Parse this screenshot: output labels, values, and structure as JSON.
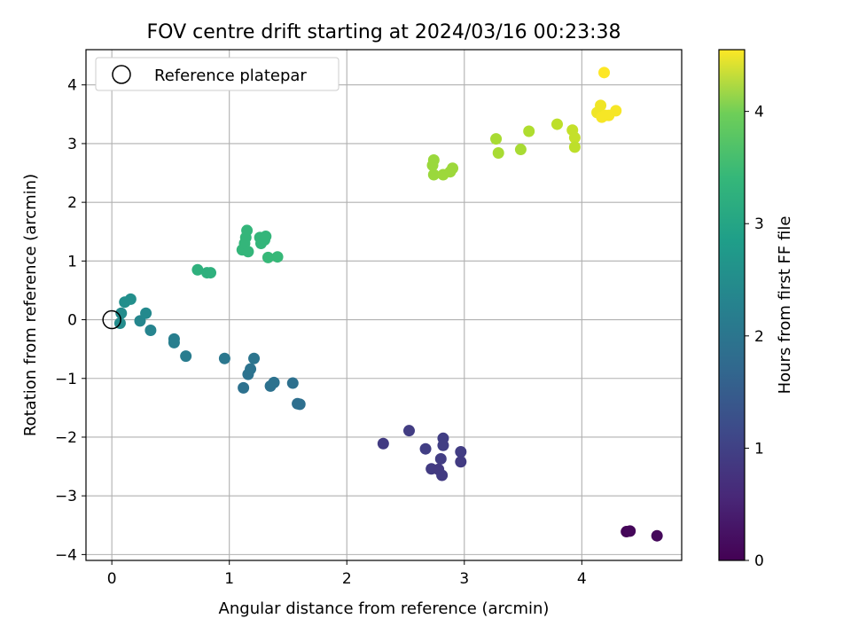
{
  "chart_data": {
    "type": "scatter",
    "title": "FOV centre drift starting at 2024/03/16 00:23:38",
    "xlabel": "Angular distance from reference (arcmin)",
    "ylabel": "Rotation from reference (arcmin)",
    "xlim": [
      -0.22,
      4.85
    ],
    "ylim": [
      -4.1,
      4.6
    ],
    "xticks": [
      0,
      1,
      2,
      3,
      4
    ],
    "yticks": [
      -4,
      -3,
      -2,
      -1,
      0,
      1,
      2,
      3,
      4
    ],
    "grid": true,
    "legend": {
      "placement": "top-left",
      "entries": [
        "Reference platepar"
      ]
    },
    "reference_point": {
      "x": 0,
      "y": 0
    },
    "colorbar": {
      "label": "Hours from first FF file",
      "colormap": "viridis",
      "range": [
        0,
        4.55
      ],
      "ticks": [
        0,
        1,
        2,
        3,
        4
      ]
    },
    "points": [
      {
        "x": 4.38,
        "y": -3.61,
        "c": 0.05
      },
      {
        "x": 4.41,
        "y": -3.6,
        "c": 0.08
      },
      {
        "x": 4.64,
        "y": -3.68,
        "c": 0.1
      },
      {
        "x": 2.31,
        "y": -2.11,
        "c": 0.8
      },
      {
        "x": 2.53,
        "y": -1.89,
        "c": 0.82
      },
      {
        "x": 2.67,
        "y": -2.2,
        "c": 0.85
      },
      {
        "x": 2.72,
        "y": -2.54,
        "c": 0.8
      },
      {
        "x": 2.78,
        "y": -2.55,
        "c": 0.78
      },
      {
        "x": 2.8,
        "y": -2.37,
        "c": 0.83
      },
      {
        "x": 2.81,
        "y": -2.65,
        "c": 0.8
      },
      {
        "x": 2.82,
        "y": -2.02,
        "c": 0.85
      },
      {
        "x": 2.82,
        "y": -2.14,
        "c": 0.85
      },
      {
        "x": 2.97,
        "y": -2.25,
        "c": 0.82
      },
      {
        "x": 2.97,
        "y": -2.42,
        "c": 0.8
      },
      {
        "x": 1.12,
        "y": -1.16,
        "c": 1.7
      },
      {
        "x": 1.16,
        "y": -0.93,
        "c": 1.72
      },
      {
        "x": 1.18,
        "y": -0.84,
        "c": 1.74
      },
      {
        "x": 1.21,
        "y": -0.66,
        "c": 1.76
      },
      {
        "x": 1.35,
        "y": -1.13,
        "c": 1.7
      },
      {
        "x": 1.38,
        "y": -1.07,
        "c": 1.72
      },
      {
        "x": 1.54,
        "y": -1.08,
        "c": 1.68
      },
      {
        "x": 1.58,
        "y": -1.43,
        "c": 1.66
      },
      {
        "x": 1.6,
        "y": -1.44,
        "c": 1.66
      },
      {
        "x": 0.96,
        "y": -0.66,
        "c": 1.8
      },
      {
        "x": 0.63,
        "y": -0.62,
        "c": 1.9
      },
      {
        "x": 0.53,
        "y": -0.33,
        "c": 1.95
      },
      {
        "x": 0.53,
        "y": -0.39,
        "c": 1.95
      },
      {
        "x": 0.33,
        "y": -0.18,
        "c": 2.05
      },
      {
        "x": 0.24,
        "y": -0.02,
        "c": 2.1
      },
      {
        "x": 0.29,
        "y": 0.11,
        "c": 2.15
      },
      {
        "x": 0.08,
        "y": 0.11,
        "c": 2.2
      },
      {
        "x": 0.07,
        "y": -0.06,
        "c": 2.2
      },
      {
        "x": 0.11,
        "y": 0.3,
        "c": 2.25
      },
      {
        "x": 0.16,
        "y": 0.35,
        "c": 2.25
      },
      {
        "x": 0.73,
        "y": 0.85,
        "c": 2.9
      },
      {
        "x": 0.81,
        "y": 0.8,
        "c": 2.9
      },
      {
        "x": 0.84,
        "y": 0.8,
        "c": 2.9
      },
      {
        "x": 1.11,
        "y": 1.19,
        "c": 3.0
      },
      {
        "x": 1.13,
        "y": 1.3,
        "c": 3.0
      },
      {
        "x": 1.14,
        "y": 1.4,
        "c": 3.0
      },
      {
        "x": 1.15,
        "y": 1.52,
        "c": 3.0
      },
      {
        "x": 1.16,
        "y": 1.16,
        "c": 3.0
      },
      {
        "x": 1.26,
        "y": 1.4,
        "c": 3.0
      },
      {
        "x": 1.27,
        "y": 1.3,
        "c": 3.0
      },
      {
        "x": 1.3,
        "y": 1.36,
        "c": 3.0
      },
      {
        "x": 1.31,
        "y": 1.42,
        "c": 3.0
      },
      {
        "x": 1.33,
        "y": 1.06,
        "c": 3.05
      },
      {
        "x": 1.41,
        "y": 1.07,
        "c": 3.05
      },
      {
        "x": 2.73,
        "y": 2.63,
        "c": 3.85
      },
      {
        "x": 2.74,
        "y": 2.72,
        "c": 3.85
      },
      {
        "x": 2.74,
        "y": 2.47,
        "c": 3.85
      },
      {
        "x": 2.82,
        "y": 2.47,
        "c": 3.87
      },
      {
        "x": 2.88,
        "y": 2.52,
        "c": 3.87
      },
      {
        "x": 2.9,
        "y": 2.58,
        "c": 3.87
      },
      {
        "x": 3.27,
        "y": 3.08,
        "c": 3.95
      },
      {
        "x": 3.29,
        "y": 2.84,
        "c": 3.95
      },
      {
        "x": 3.48,
        "y": 2.9,
        "c": 3.95
      },
      {
        "x": 3.55,
        "y": 3.21,
        "c": 4.0
      },
      {
        "x": 3.79,
        "y": 3.33,
        "c": 4.1
      },
      {
        "x": 3.92,
        "y": 3.23,
        "c": 4.15
      },
      {
        "x": 3.94,
        "y": 3.1,
        "c": 4.15
      },
      {
        "x": 3.94,
        "y": 2.94,
        "c": 4.1
      },
      {
        "x": 4.13,
        "y": 3.53,
        "c": 4.45
      },
      {
        "x": 4.16,
        "y": 3.65,
        "c": 4.45
      },
      {
        "x": 4.17,
        "y": 3.45,
        "c": 4.5
      },
      {
        "x": 4.2,
        "y": 3.48,
        "c": 4.5
      },
      {
        "x": 4.23,
        "y": 3.48,
        "c": 4.5
      },
      {
        "x": 4.29,
        "y": 3.56,
        "c": 4.5
      },
      {
        "x": 4.19,
        "y": 4.21,
        "c": 4.55
      }
    ]
  }
}
